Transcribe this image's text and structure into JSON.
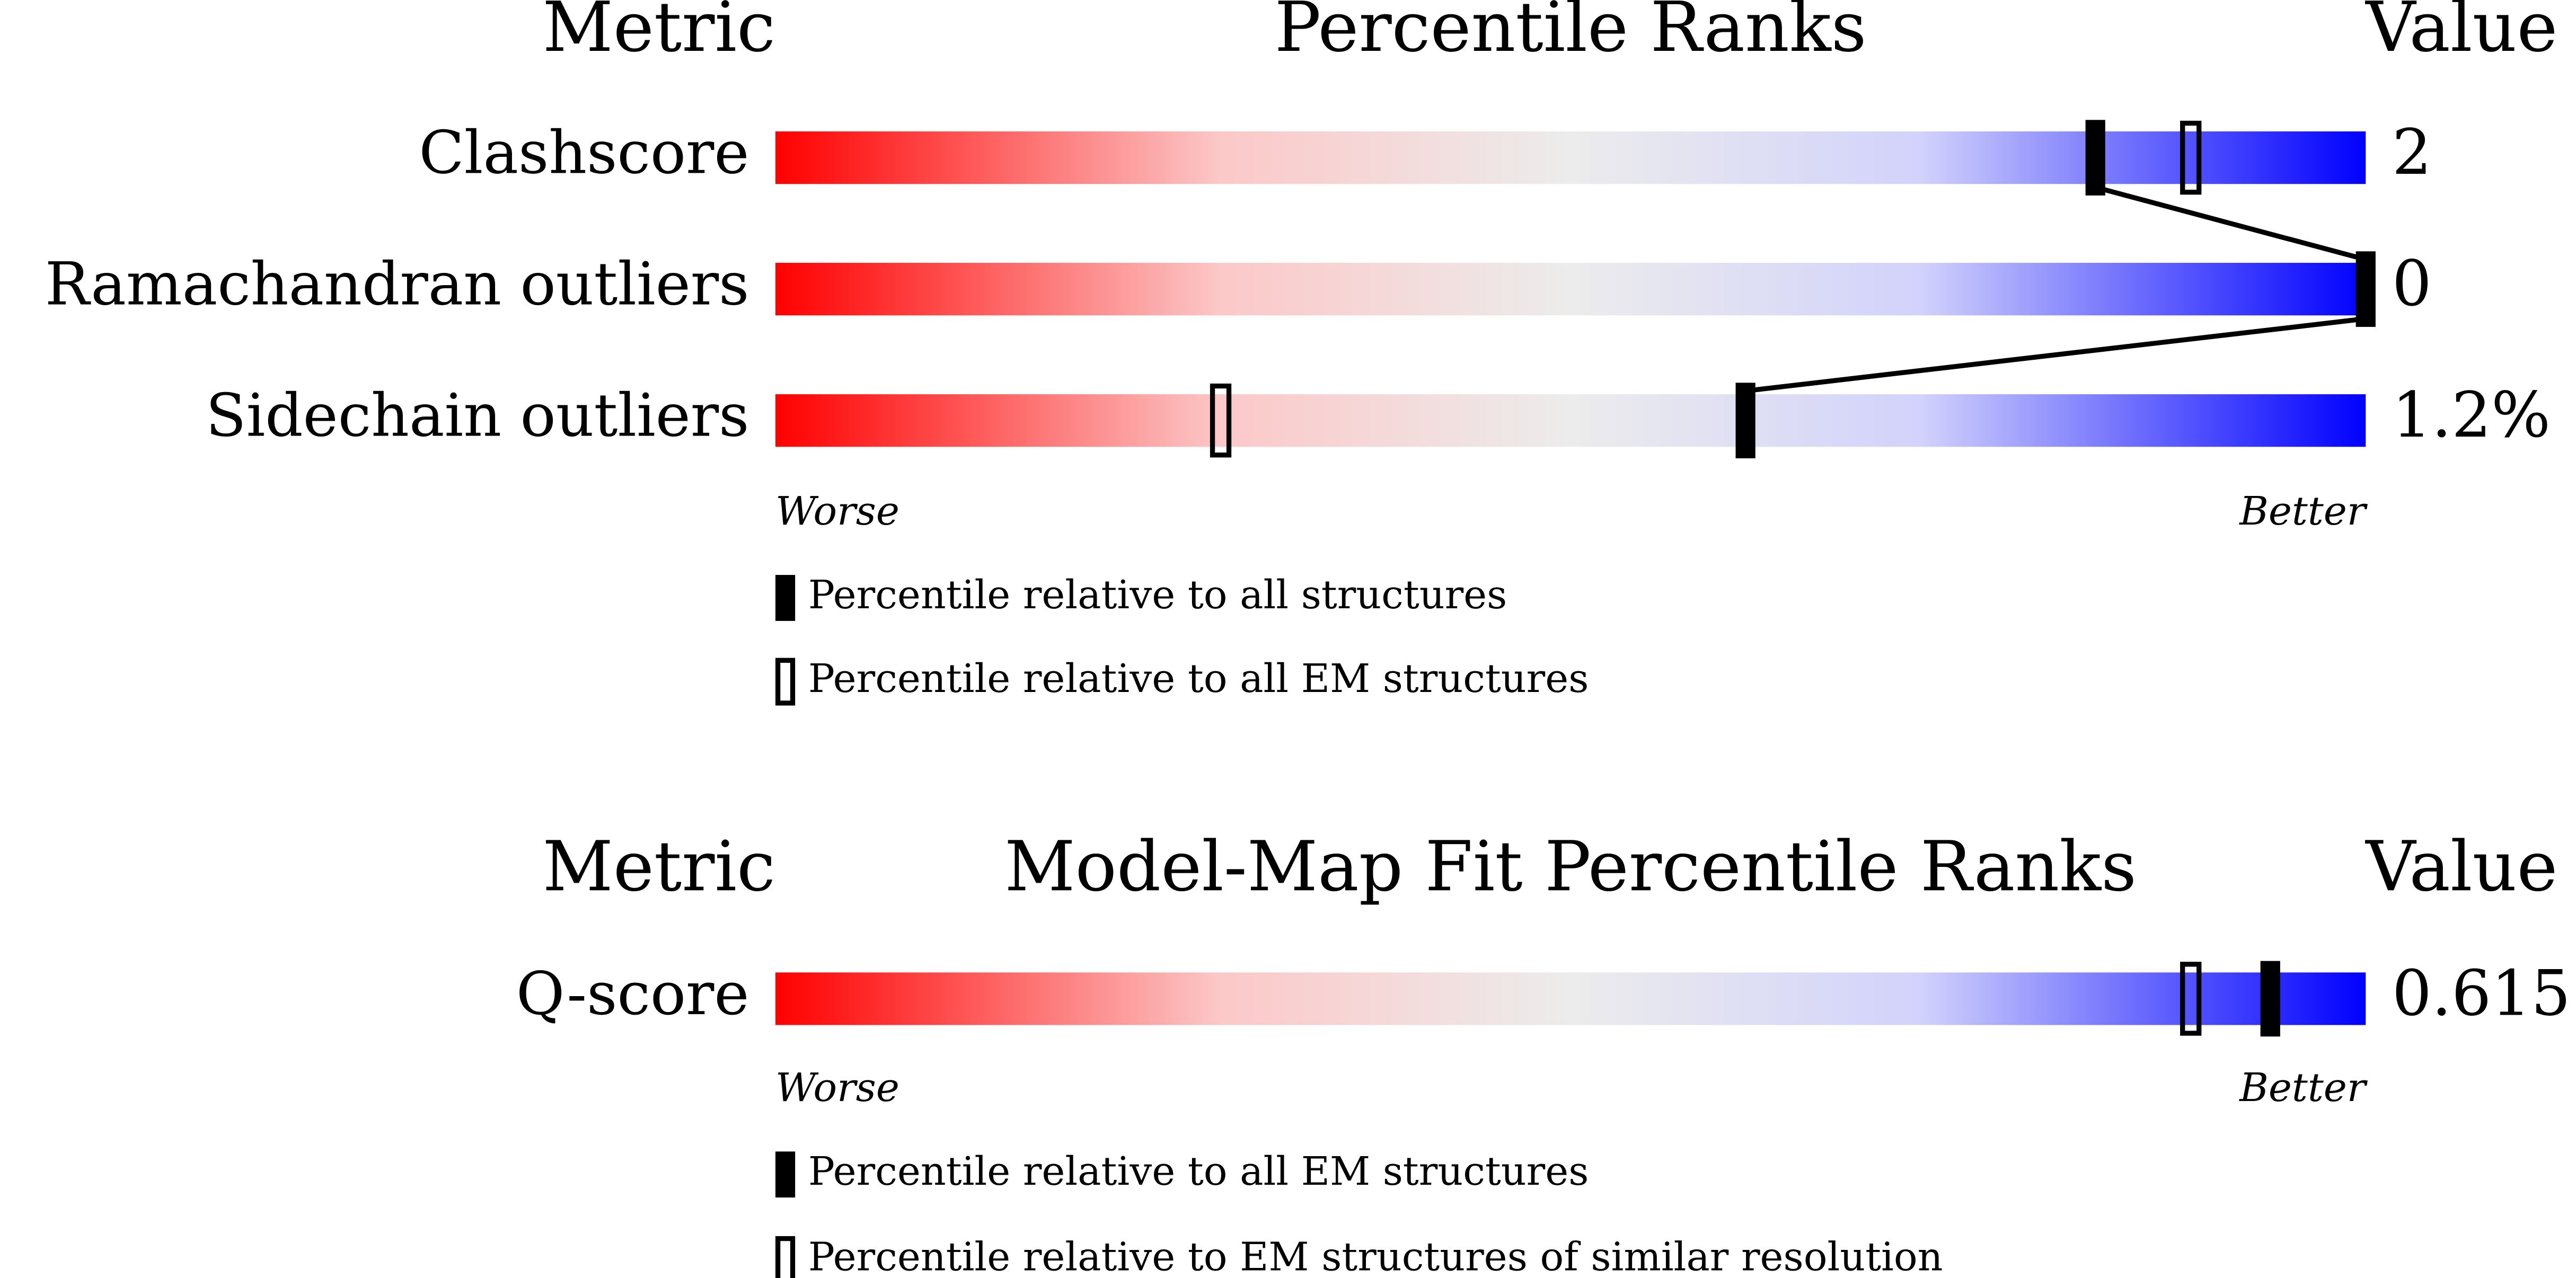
{
  "panels": [
    {
      "headers": {
        "metric": "Metric",
        "title": "Percentile Ranks",
        "value": "Value"
      },
      "xlim": [
        0,
        100
      ],
      "rows": [
        {
          "metric": "Clashscore",
          "value": "2",
          "percentile_filled": 83,
          "percentile_open": 89
        },
        {
          "metric": "Ramachandran outliers",
          "value": "0",
          "percentile_filled": 100
        },
        {
          "metric": "Sidechain outliers",
          "value": "1.2%",
          "percentile_filled": 61,
          "percentile_open": 28
        }
      ],
      "worse": "Worse",
      "better": "Better",
      "legend": {
        "filled": "Percentile relative to all structures",
        "open": "Percentile relative to all EM structures"
      }
    },
    {
      "headers": {
        "metric": "Metric",
        "title": "Model-Map Fit Percentile Ranks",
        "value": "Value"
      },
      "xlim": [
        0,
        100
      ],
      "rows": [
        {
          "metric": "Q-score",
          "value": "0.615",
          "percentile_filled": 94,
          "percentile_open": 89
        }
      ],
      "worse": "Worse",
      "better": "Better",
      "legend": {
        "filled": "Percentile relative to all EM structures",
        "open": "Percentile relative to EM structures of similar resolution"
      }
    }
  ]
}
